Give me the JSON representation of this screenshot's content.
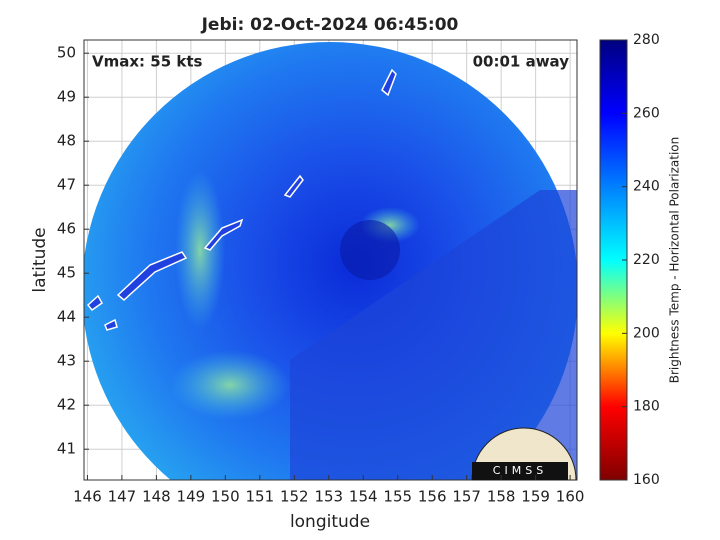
{
  "chart_data": {
    "type": "image",
    "title": "Jebi: 02-Oct-2024 06:45:00",
    "annotations": [
      "Vmax: 55 kts",
      "00:01 away"
    ],
    "xlabel": "longitude",
    "ylabel": "latitude",
    "xlim": [
      145.9,
      160.2
    ],
    "ylim": [
      40.3,
      50.3
    ],
    "xticks": [
      146,
      147,
      148,
      149,
      150,
      151,
      152,
      153,
      154,
      155,
      156,
      157,
      158,
      159,
      160
    ],
    "yticks": [
      41,
      42,
      43,
      44,
      45,
      46,
      47,
      48,
      49,
      50
    ],
    "grid": true,
    "colorbar": {
      "label": "Brightness Temp - Horizontal Polarization",
      "lim": [
        160,
        280
      ],
      "ticks": [
        160,
        180,
        200,
        220,
        240,
        260,
        280
      ],
      "colors": [
        "#800000",
        "#ff0000",
        "#ffff00",
        "#00ffff",
        "#0080ff",
        "#0000ff",
        "#000080"
      ]
    },
    "logo": "CIMSS"
  }
}
